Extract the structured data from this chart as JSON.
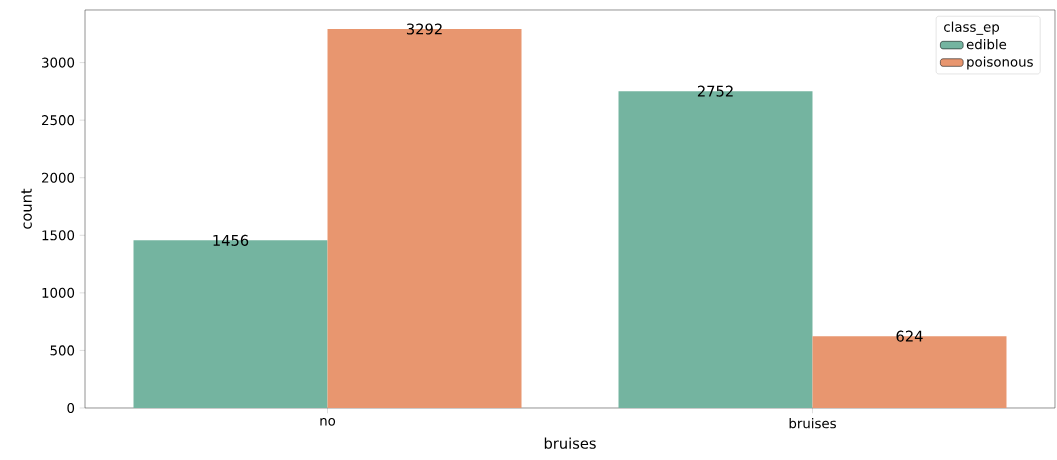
{
  "chart_data": {
    "type": "bar",
    "xlabel": "bruises",
    "ylabel": "count",
    "legend_title": "class_ep",
    "categories": [
      "no",
      "bruises"
    ],
    "series": [
      {
        "name": "edible",
        "color": "#74b4a0",
        "values": [
          1456,
          2752
        ]
      },
      {
        "name": "poisonous",
        "color": "#e8966f",
        "values": [
          3292,
          624
        ]
      }
    ],
    "ylim": [
      0,
      3457
    ],
    "yticks": [
      0,
      500,
      1000,
      1500,
      2000,
      2500,
      3000
    ],
    "data_labels": true,
    "legend": "top right",
    "grid": false
  }
}
